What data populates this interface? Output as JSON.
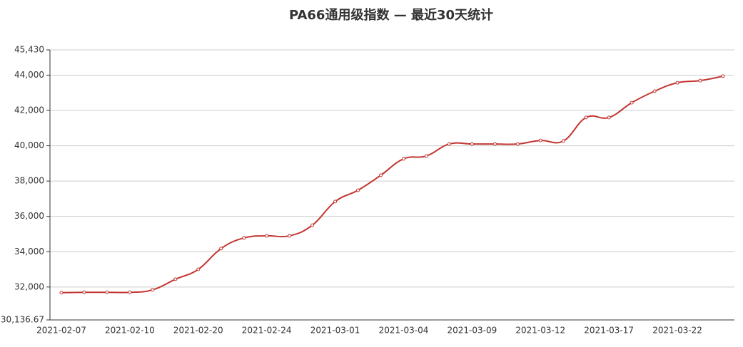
{
  "chart_data": {
    "type": "line",
    "title": "PA66通用级指数  —  最近30天统计",
    "categories": [
      "2021-02-07",
      null,
      null,
      "2021-02-10",
      null,
      null,
      "2021-02-20",
      null,
      null,
      "2021-02-24",
      null,
      null,
      "2021-03-01",
      null,
      null,
      "2021-03-04",
      null,
      null,
      "2021-03-09",
      null,
      null,
      "2021-03-12",
      null,
      null,
      "2021-03-17",
      null,
      null,
      "2021-03-22",
      null,
      null
    ],
    "values": [
      31680,
      31700,
      31700,
      31700,
      31840,
      32440,
      33000,
      34180,
      34780,
      34900,
      34900,
      35500,
      36840,
      37480,
      38330,
      39260,
      39420,
      40100,
      40100,
      40100,
      40100,
      40300,
      40270,
      41600,
      41600,
      42440,
      43090,
      43570,
      43690,
      43940
    ],
    "color": "#c23531",
    "ylim": [
      30136.67,
      45430
    ],
    "yticks": [
      {
        "value": 30136.67,
        "label": "30,136.67"
      },
      {
        "value": 32000,
        "label": "32,000"
      },
      {
        "value": 34000,
        "label": "34,000"
      },
      {
        "value": 36000,
        "label": "36,000"
      },
      {
        "value": 38000,
        "label": "38,000"
      },
      {
        "value": 40000,
        "label": "40,000"
      },
      {
        "value": 42000,
        "label": "42,000"
      },
      {
        "value": 44000,
        "label": "44,000"
      },
      {
        "value": 45430,
        "label": "45,430"
      }
    ],
    "grid": true
  }
}
